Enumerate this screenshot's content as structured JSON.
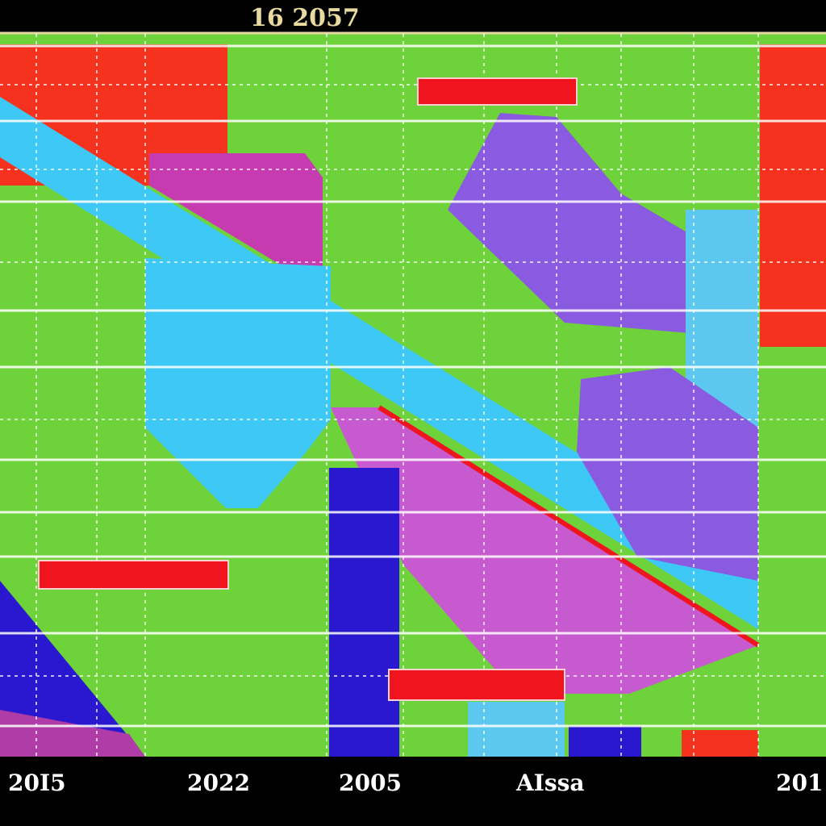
{
  "top_label": "16 2057",
  "bottom_labels": [
    "20I5",
    "2022",
    "2005",
    "AIssa",
    "201"
  ]
}
